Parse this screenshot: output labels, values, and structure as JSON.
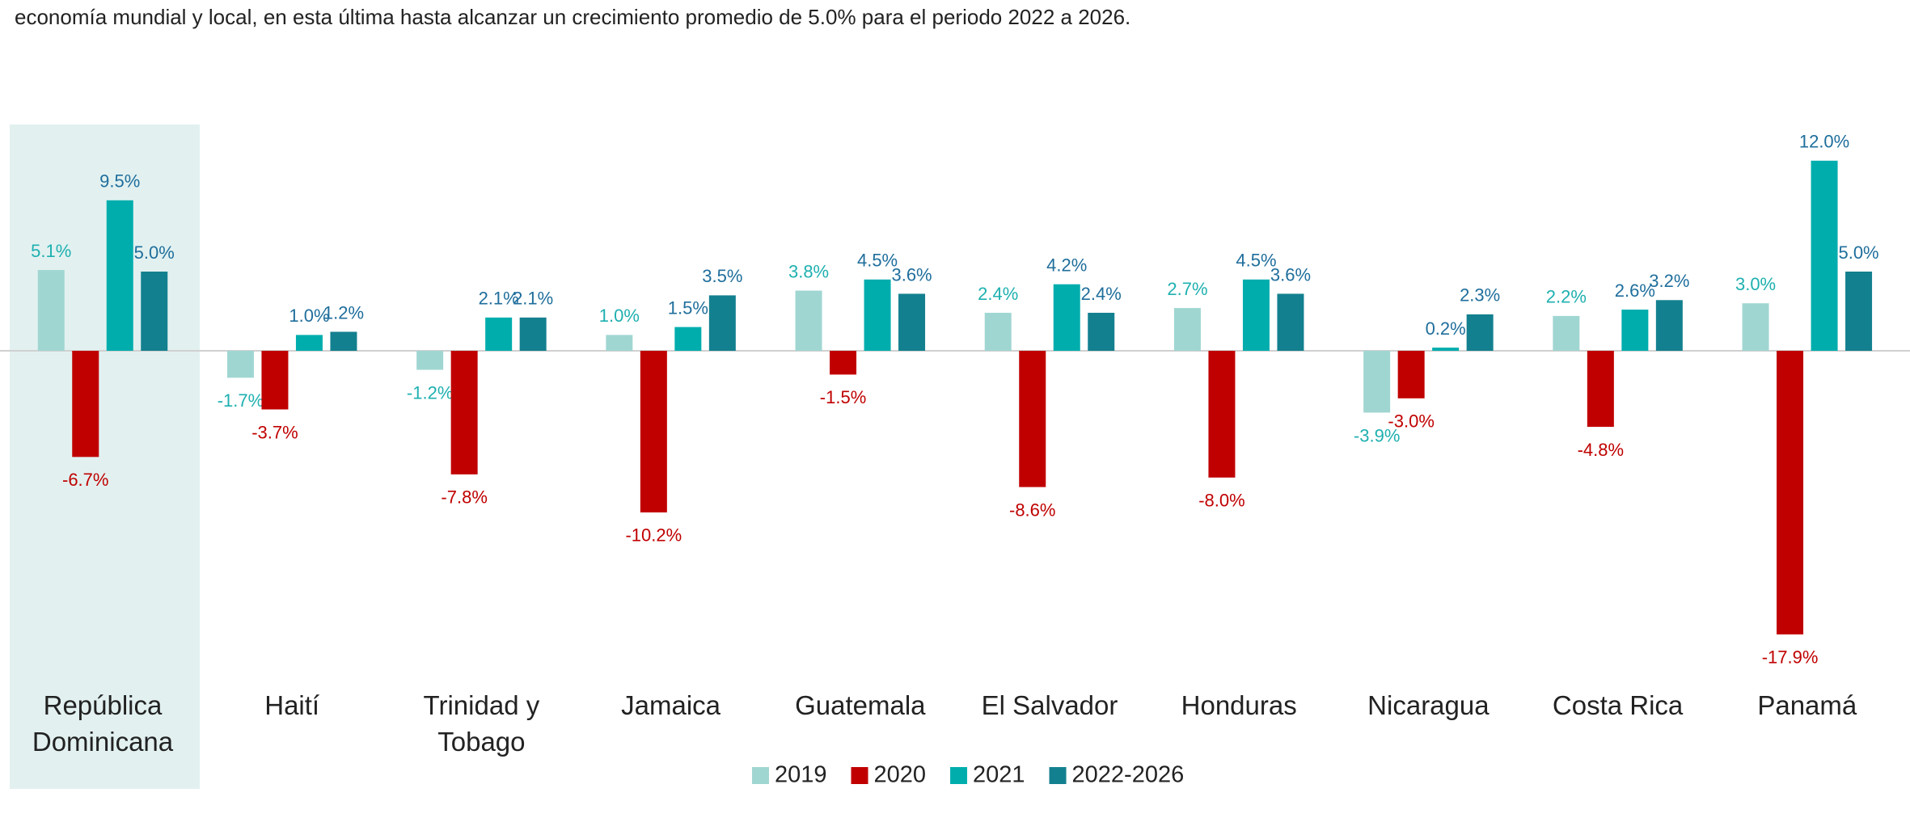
{
  "chart_data": {
    "type": "bar",
    "subtitle": "economía mundial y local, en esta última hasta alcanzar un crecimiento promedio de 5.0% para el periodo 2022 a 2026.",
    "categories": [
      "República Dominicana",
      "Haití",
      "Trinidad y Tobago",
      "Jamaica",
      "Guatemala",
      "El Salvador",
      "Honduras",
      "Nicaragua",
      "Costa Rica",
      "Panamá"
    ],
    "series": [
      {
        "name": "2019",
        "color": "#a0d6d2",
        "label_color": "#1fb0b0",
        "values": [
          5.1,
          -1.7,
          -1.2,
          1.0,
          3.8,
          2.4,
          2.7,
          -3.9,
          2.2,
          3.0
        ],
        "value_labels": [
          "5.1%",
          "-1.7%",
          "-1.2%",
          "1.0%",
          "3.8%",
          "2.4%",
          "2.7%",
          "-3.9%",
          "2.2%",
          "3.0%"
        ]
      },
      {
        "name": "2020",
        "color": "#c00000",
        "label_color": "#c00000",
        "values": [
          -6.7,
          -3.7,
          -7.8,
          -10.2,
          -1.5,
          -8.6,
          -8.0,
          -3.0,
          -4.8,
          -17.9
        ],
        "value_labels": [
          "-6.7%",
          "-3.7%",
          "-7.8%",
          "-10.2%",
          "-1.5%",
          "-8.6%",
          "-8.0%",
          "-3.0%",
          "-4.8%",
          "-17.9%"
        ]
      },
      {
        "name": "2021",
        "color": "#00adad",
        "label_color": "#1f6e9c",
        "values": [
          9.5,
          1.0,
          2.1,
          1.5,
          4.5,
          4.2,
          4.5,
          0.2,
          2.6,
          12.0
        ],
        "value_labels": [
          "9.5%",
          "1.0%",
          "2.1%",
          "1.5%",
          "4.5%",
          "4.2%",
          "4.5%",
          "0.2%",
          "2.6%",
          "12.0%"
        ]
      },
      {
        "name": "2022-2026",
        "color": "#13808f",
        "label_color": "#1f6e9c",
        "values": [
          5.0,
          1.2,
          2.1,
          3.5,
          3.6,
          2.4,
          3.6,
          2.3,
          3.2,
          5.0
        ],
        "value_labels": [
          "5.0%",
          "1.2%",
          "2.1%",
          "3.5%",
          "3.6%",
          "2.4%",
          "3.6%",
          "2.3%",
          "3.2%",
          "5.0%"
        ]
      }
    ]
  }
}
